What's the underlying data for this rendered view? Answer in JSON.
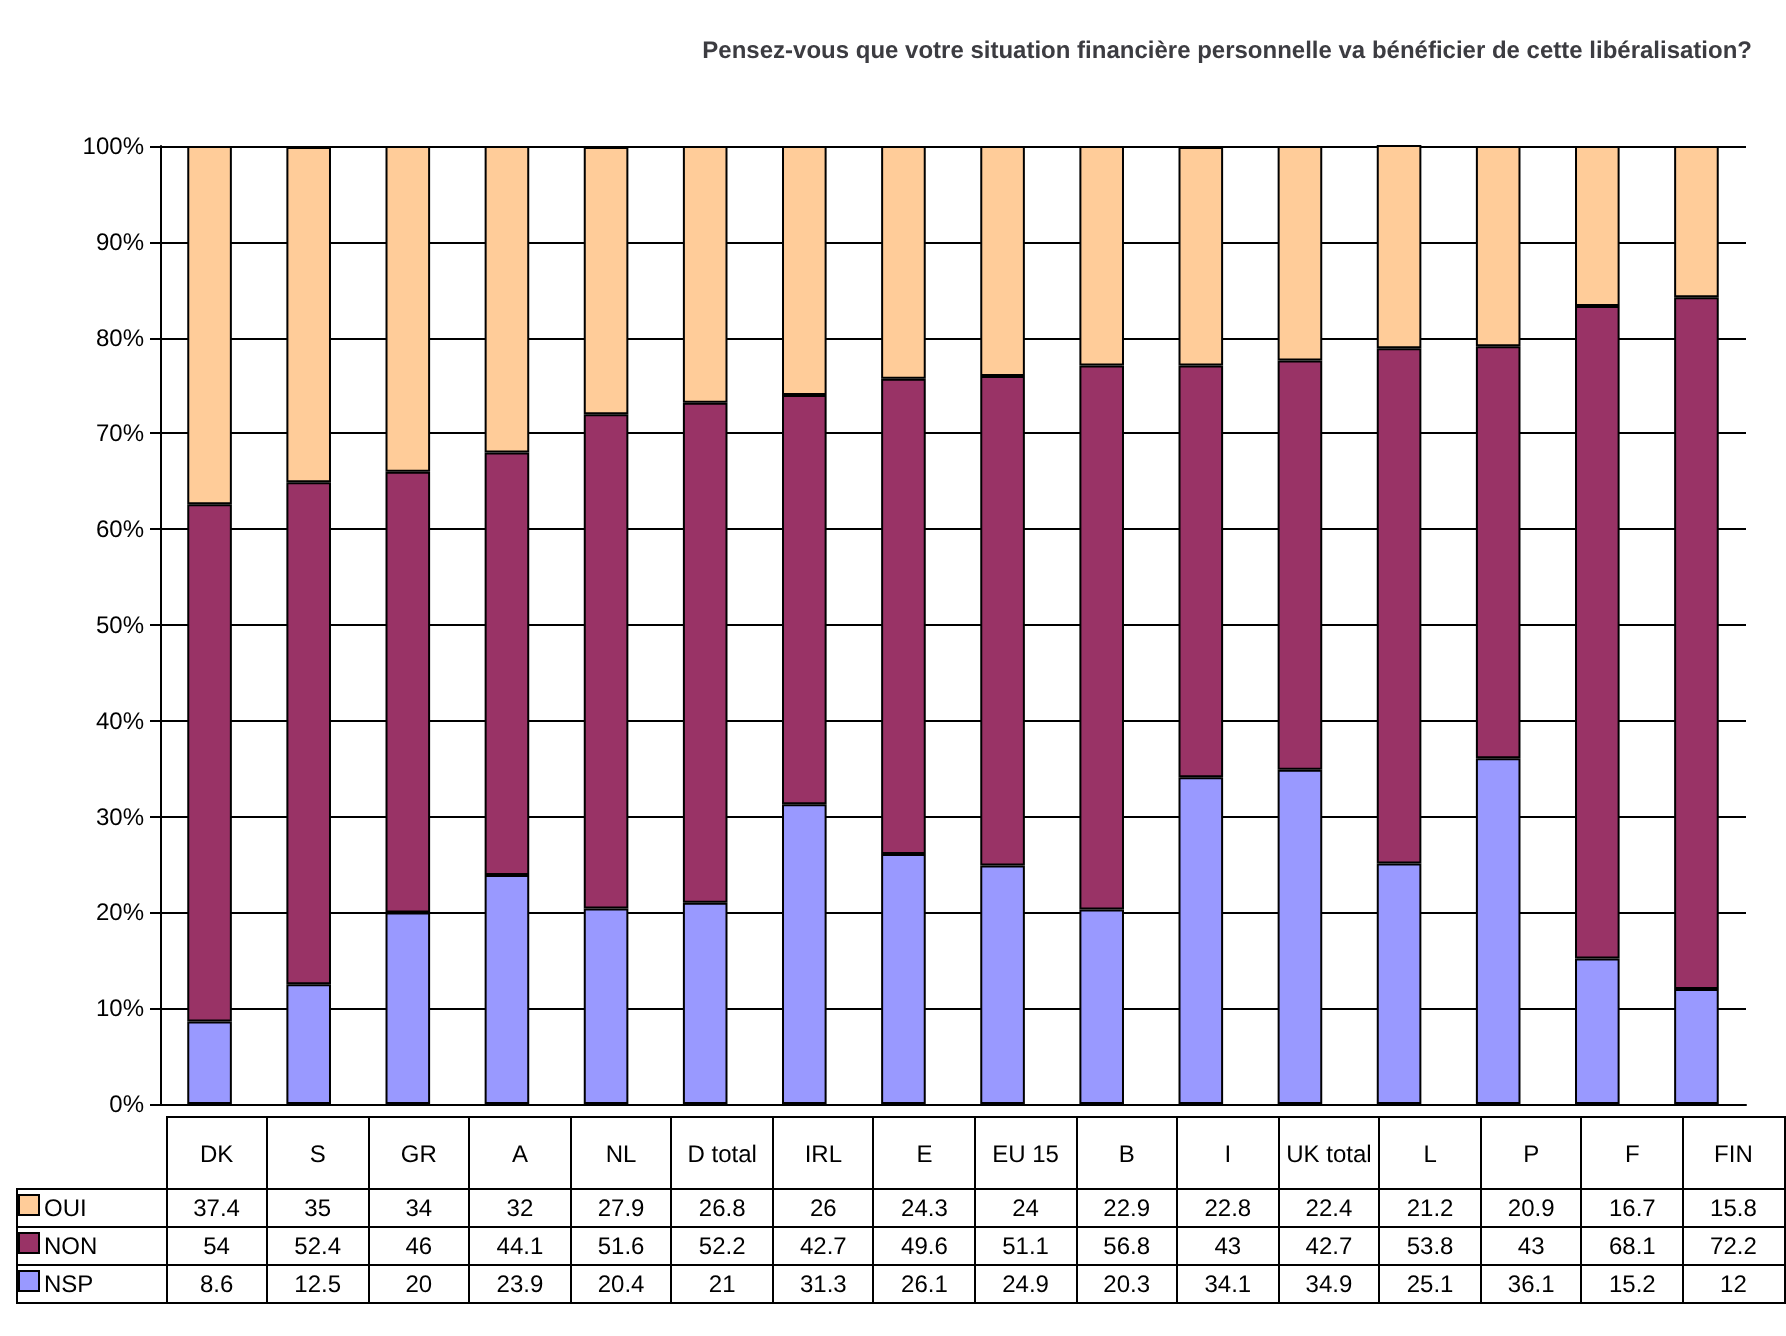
{
  "chart_data": {
    "type": "bar",
    "title": "Pensez-vous que votre situation financière personnelle va bénéficier de cette libéralisation?",
    "stacked": true,
    "categories": [
      "DK",
      "S",
      "GR",
      "A",
      "NL",
      "D total",
      "IRL",
      "E",
      "EU 15",
      "B",
      "I",
      "UK total",
      "L",
      "P",
      "F",
      "FIN"
    ],
    "series": [
      {
        "name": "NSP",
        "color": "#9999ff",
        "values": [
          8.6,
          12.5,
          20,
          23.9,
          20.4,
          21,
          31.3,
          26.1,
          24.9,
          20.3,
          34.1,
          34.9,
          25.1,
          36.1,
          15.2,
          12
        ]
      },
      {
        "name": "NON",
        "color": "#993366",
        "values": [
          54,
          52.4,
          46,
          44.1,
          51.6,
          52.2,
          42.7,
          49.6,
          51.1,
          56.8,
          43,
          42.7,
          53.8,
          43,
          68.1,
          72.2
        ]
      },
      {
        "name": "OUI",
        "color": "#ffcc99",
        "values": [
          37.4,
          35,
          34,
          32,
          27.9,
          26.8,
          26,
          24.3,
          24,
          22.9,
          22.8,
          22.4,
          21.2,
          20.9,
          16.7,
          15.8
        ]
      }
    ],
    "ylim": [
      0,
      100
    ],
    "yticks": [
      {
        "value": 0,
        "label": "0%"
      },
      {
        "value": 10,
        "label": "10%"
      },
      {
        "value": 20,
        "label": "20%"
      },
      {
        "value": 30,
        "label": "30%"
      },
      {
        "value": 40,
        "label": "40%"
      },
      {
        "value": 50,
        "label": "50%"
      },
      {
        "value": 60,
        "label": "60%"
      },
      {
        "value": 70,
        "label": "70%"
      },
      {
        "value": 80,
        "label": "80%"
      },
      {
        "value": 90,
        "label": "90%"
      },
      {
        "value": 100,
        "label": "100%"
      }
    ],
    "grid": "y",
    "legend": "bottom",
    "data_labels": true
  }
}
